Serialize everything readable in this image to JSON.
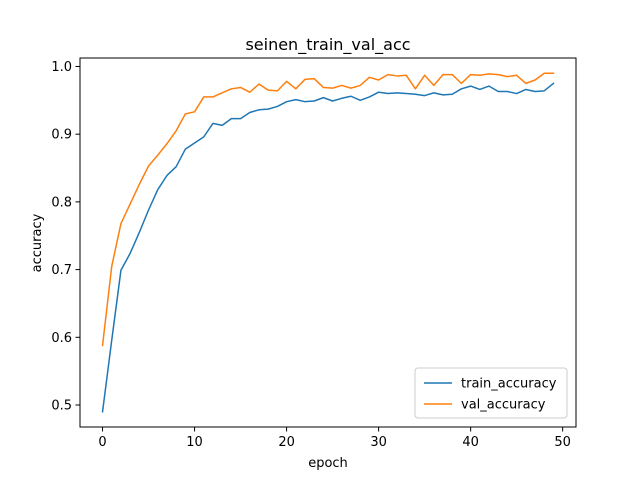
{
  "chart_data": {
    "type": "line",
    "title": "seinen_train_val_acc",
    "xlabel": "epoch",
    "ylabel": "accuracy",
    "xlim": [
      -2.45,
      51.45
    ],
    "ylim": [
      0.4675,
      1.0125
    ],
    "xticks": [
      0,
      10,
      20,
      30,
      40,
      50
    ],
    "yticks": [
      0.5,
      0.6,
      0.7,
      0.8,
      0.9,
      1.0
    ],
    "xtick_labels": [
      "0",
      "10",
      "20",
      "30",
      "40",
      "50"
    ],
    "ytick_labels": [
      "0.5",
      "0.6",
      "0.7",
      "0.8",
      "0.9",
      "1.0"
    ],
    "grid": false,
    "legend_position": "lower right",
    "x": [
      0,
      1,
      2,
      3,
      4,
      5,
      6,
      7,
      8,
      9,
      10,
      11,
      12,
      13,
      14,
      15,
      16,
      17,
      18,
      19,
      20,
      21,
      22,
      23,
      24,
      25,
      26,
      27,
      28,
      29,
      30,
      31,
      32,
      33,
      34,
      35,
      36,
      37,
      38,
      39,
      40,
      41,
      42,
      43,
      44,
      45,
      46,
      47,
      48,
      49
    ],
    "series": [
      {
        "name": "train_accuracy",
        "color": "#1f77b4",
        "values": [
          0.49,
          0.596,
          0.699,
          0.724,
          0.755,
          0.788,
          0.818,
          0.839,
          0.852,
          0.878,
          0.887,
          0.896,
          0.916,
          0.913,
          0.923,
          0.923,
          0.932,
          0.936,
          0.937,
          0.941,
          0.948,
          0.951,
          0.948,
          0.949,
          0.954,
          0.949,
          0.953,
          0.956,
          0.95,
          0.955,
          0.962,
          0.96,
          0.961,
          0.96,
          0.959,
          0.957,
          0.961,
          0.958,
          0.959,
          0.967,
          0.971,
          0.966,
          0.971,
          0.963,
          0.963,
          0.96,
          0.966,
          0.963,
          0.964,
          0.975
        ]
      },
      {
        "name": "val_accuracy",
        "color": "#ff7f0e",
        "values": [
          0.588,
          0.705,
          0.768,
          0.797,
          0.826,
          0.853,
          0.869,
          0.886,
          0.905,
          0.93,
          0.933,
          0.955,
          0.955,
          0.961,
          0.967,
          0.969,
          0.962,
          0.974,
          0.965,
          0.964,
          0.978,
          0.967,
          0.981,
          0.982,
          0.969,
          0.968,
          0.972,
          0.968,
          0.972,
          0.984,
          0.98,
          0.988,
          0.986,
          0.987,
          0.967,
          0.987,
          0.972,
          0.988,
          0.988,
          0.975,
          0.988,
          0.987,
          0.989,
          0.988,
          0.985,
          0.987,
          0.975,
          0.98,
          0.99,
          0.99
        ]
      }
    ]
  }
}
